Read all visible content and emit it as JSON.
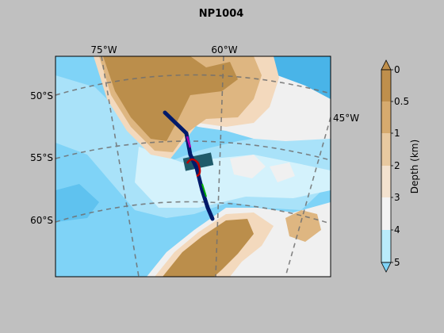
{
  "title": "NP1004",
  "map": {
    "lon_labels": [
      {
        "text": "75°W"
      },
      {
        "text": "60°W"
      },
      {
        "text": "45°W"
      }
    ],
    "lat_labels": [
      {
        "text": "50°S"
      },
      {
        "text": "55°S"
      },
      {
        "text": "60°S"
      }
    ],
    "colors": {
      "deep_ocean": "#7fd3f7",
      "mid_ocean": "#a9e2f9",
      "shallow_ocean": "#d4f2fc",
      "shelf": "#f0f0f0",
      "land_light": "#f3d9bd",
      "land_mid": "#deb681",
      "land_dark": "#bb8e4b",
      "open_water": "#49b4e8",
      "track": "#001a6a",
      "segment_red": "#c00000",
      "segment_green": "#00b000",
      "segment_magenta": "#b000b0",
      "box_teal": "#1f5a6a",
      "graticule": "#707070"
    }
  },
  "colorbar": {
    "label": "Depth (km)",
    "ticks": [
      "0",
      "0.5",
      "1",
      "2",
      "3",
      "4",
      "5"
    ],
    "colors": [
      "#bf8f4c",
      "#d6aa6e",
      "#e8c9a0",
      "#f3e2cf",
      "#f3f3f3",
      "#b9ebfb",
      "#7fd3f7"
    ]
  }
}
